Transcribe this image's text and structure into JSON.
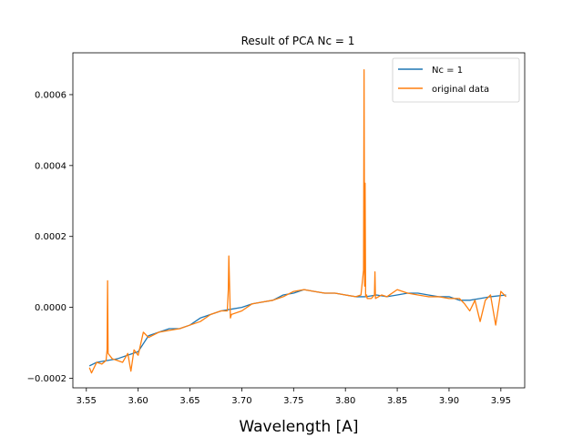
{
  "chart_data": {
    "type": "line",
    "title": "Result of PCA Nc = 1",
    "xlabel": "Wavelength [A]",
    "ylabel": "",
    "xlim": [
      3.537,
      3.973
    ],
    "ylim": [
      -0.000227,
      0.000718
    ],
    "xticks": [
      3.55,
      3.6,
      3.65,
      3.7,
      3.75,
      3.8,
      3.85,
      3.9,
      3.95
    ],
    "xtick_labels": [
      "3.55",
      "3.60",
      "3.65",
      "3.70",
      "3.75",
      "3.80",
      "3.85",
      "3.90",
      "3.95"
    ],
    "yticks": [
      -0.0002,
      0.0,
      0.0002,
      0.0004,
      0.0006
    ],
    "ytick_labels": [
      "−0.0002",
      "0.0000",
      "0.0002",
      "0.0004",
      "0.0006"
    ],
    "legend": {
      "placement": "top-right"
    },
    "series": [
      {
        "name": "Nc = 1",
        "color": "#1f77b4",
        "x": [
          3.553,
          3.56,
          3.57,
          3.58,
          3.59,
          3.6,
          3.61,
          3.62,
          3.63,
          3.64,
          3.65,
          3.66,
          3.67,
          3.68,
          3.69,
          3.7,
          3.71,
          3.72,
          3.73,
          3.74,
          3.75,
          3.76,
          3.77,
          3.78,
          3.79,
          3.8,
          3.81,
          3.82,
          3.83,
          3.84,
          3.85,
          3.86,
          3.87,
          3.88,
          3.89,
          3.9,
          3.91,
          3.92,
          3.93,
          3.94,
          3.955
        ],
        "y": [
          -0.000165,
          -0.000155,
          -0.00015,
          -0.000145,
          -0.000135,
          -0.000125,
          -8e-05,
          -7e-05,
          -6e-05,
          -6e-05,
          -5e-05,
          -3e-05,
          -2e-05,
          -1e-05,
          -5e-06,
          0.0,
          1e-05,
          1.5e-05,
          2e-05,
          3.5e-05,
          4e-05,
          5e-05,
          4.5e-05,
          4e-05,
          4e-05,
          3.5e-05,
          3e-05,
          3e-05,
          3.5e-05,
          3e-05,
          3.5e-05,
          4e-05,
          4e-05,
          3.5e-05,
          3e-05,
          3e-05,
          2e-05,
          2e-05,
          2.5e-05,
          3e-05,
          3.5e-05
        ]
      },
      {
        "name": "original data",
        "color": "#ff7f0e",
        "x": [
          3.553,
          3.555,
          3.56,
          3.565,
          3.569,
          3.57,
          3.5705,
          3.571,
          3.575,
          3.58,
          3.585,
          3.59,
          3.593,
          3.596,
          3.6,
          3.605,
          3.61,
          3.62,
          3.63,
          3.64,
          3.65,
          3.66,
          3.67,
          3.68,
          3.686,
          3.687,
          3.6875,
          3.689,
          3.69,
          3.7,
          3.71,
          3.72,
          3.73,
          3.74,
          3.75,
          3.76,
          3.77,
          3.78,
          3.79,
          3.8,
          3.81,
          3.815,
          3.8175,
          3.818,
          3.8185,
          3.819,
          3.8195,
          3.8205,
          3.821,
          3.825,
          3.828,
          3.8285,
          3.829,
          3.835,
          3.84,
          3.85,
          3.86,
          3.87,
          3.88,
          3.89,
          3.9,
          3.91,
          3.915,
          3.92,
          3.925,
          3.93,
          3.935,
          3.94,
          3.945,
          3.95,
          3.955
        ],
        "y": [
          -0.00017,
          -0.000185,
          -0.000155,
          -0.00016,
          -0.00015,
          -0.00012,
          7.5e-05,
          -0.00013,
          -0.000145,
          -0.00015,
          -0.000155,
          -0.00013,
          -0.00018,
          -0.00012,
          -0.000135,
          -7e-05,
          -8.5e-05,
          -7e-05,
          -6.5e-05,
          -6e-05,
          -5e-05,
          -4e-05,
          -2e-05,
          -1e-05,
          -1e-05,
          5e-05,
          0.000145,
          -3e-05,
          -2e-05,
          -1e-05,
          1e-05,
          1.5e-05,
          2e-05,
          3e-05,
          4.5e-05,
          5e-05,
          4.5e-05,
          4e-05,
          4e-05,
          3.5e-05,
          3e-05,
          3.5e-05,
          0.000105,
          0.00067,
          6e-05,
          0.00035,
          3e-05,
          3.5e-05,
          2.5e-05,
          2.5e-05,
          3.5e-05,
          0.0001,
          2.5e-05,
          3.5e-05,
          3e-05,
          5e-05,
          4e-05,
          3.5e-05,
          3e-05,
          3e-05,
          2.5e-05,
          2.5e-05,
          1e-05,
          -1e-05,
          2e-05,
          -4e-05,
          2e-05,
          3.5e-05,
          -5e-05,
          4.5e-05,
          3e-05
        ]
      }
    ]
  }
}
